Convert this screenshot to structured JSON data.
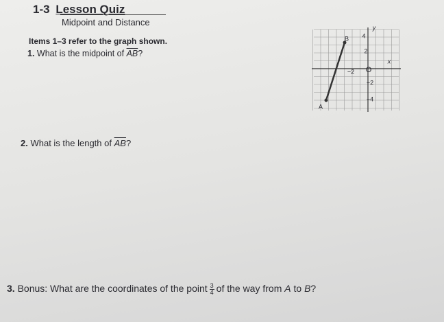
{
  "header": {
    "number": "1-3",
    "title": "Lesson Quiz",
    "subtitle": "Midpoint and Distance"
  },
  "intro": "Items 1–3 refer to the graph shown.",
  "questions": [
    {
      "number": "1.",
      "text": "What is the midpoint of",
      "segment": "AB",
      "end": "?"
    },
    {
      "number": "2.",
      "text": "What is the length of",
      "segment": "AB",
      "end": "?"
    },
    {
      "number": "3.",
      "text": "Bonus: What are the coordinates of the point",
      "numerator": "3",
      "denominator": "4",
      "middle": "of the way from",
      "from": "A",
      "to": "to",
      "target": "B",
      "end": "?"
    }
  ],
  "graph": {
    "x_axis": "x",
    "y_axis": "y",
    "origin": "O",
    "x_labels": [
      "−2"
    ],
    "y_labels": [
      "4",
      "2",
      "−2",
      "−4"
    ],
    "points": [
      "A",
      "B"
    ]
  }
}
